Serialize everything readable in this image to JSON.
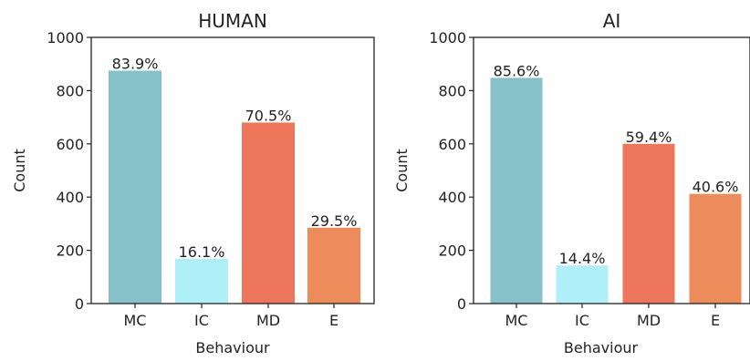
{
  "chart_data": [
    {
      "type": "bar",
      "title": "HUMAN",
      "xlabel": "Behaviour",
      "ylabel": "Count",
      "ylim": [
        0,
        1000
      ],
      "yticks": [
        0,
        200,
        400,
        600,
        800,
        1000
      ],
      "grid": false,
      "categories": [
        "MC",
        "IC",
        "MD",
        "E"
      ],
      "values": [
        875,
        168,
        680,
        285
      ],
      "data_labels": [
        "83.9%",
        "16.1%",
        "70.5%",
        "29.5%"
      ],
      "colors": [
        "#86c1ca",
        "#aeeff8",
        "#ec755a",
        "#ee8b5b"
      ]
    },
    {
      "type": "bar",
      "title": "AI",
      "xlabel": "Behaviour",
      "ylabel": "Count",
      "ylim": [
        0,
        1000
      ],
      "yticks": [
        0,
        200,
        400,
        600,
        800,
        1000
      ],
      "grid": false,
      "categories": [
        "MC",
        "IC",
        "MD",
        "E"
      ],
      "values": [
        848,
        143,
        600,
        412
      ],
      "data_labels": [
        "85.6%",
        "14.4%",
        "59.4%",
        "40.6%"
      ],
      "colors": [
        "#86c1ca",
        "#aeeff8",
        "#ec755a",
        "#ee8b5b"
      ]
    }
  ]
}
